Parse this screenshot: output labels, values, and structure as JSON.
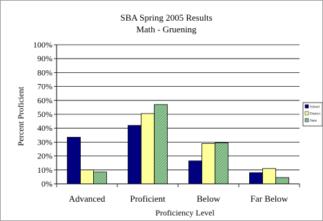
{
  "chart_data": {
    "type": "bar",
    "title": "SBA Spring 2005 Results",
    "subtitle": "Math - Gruening",
    "xlabel": "Proficiency Level",
    "ylabel": "Percent Proficient",
    "ylim": [
      0,
      100
    ],
    "yticks": [
      "0%",
      "10%",
      "20%",
      "30%",
      "40%",
      "50%",
      "60%",
      "70%",
      "80%",
      "90%",
      "100%"
    ],
    "categories": [
      "Advanced",
      "Proficient",
      "Below",
      "Far Below"
    ],
    "grid": true,
    "legend_position": "right",
    "series": [
      {
        "name": "School",
        "values": [
          33.5,
          42,
          16.5,
          8
        ],
        "color": "#000080",
        "pattern": "solid"
      },
      {
        "name": "District",
        "values": [
          10,
          50.5,
          29,
          11
        ],
        "color": "#ffff99",
        "pattern": "solid"
      },
      {
        "name": "State",
        "values": [
          8.5,
          57,
          29.5,
          4.5
        ],
        "color": "#99cc99",
        "pattern": "hatched"
      }
    ]
  }
}
